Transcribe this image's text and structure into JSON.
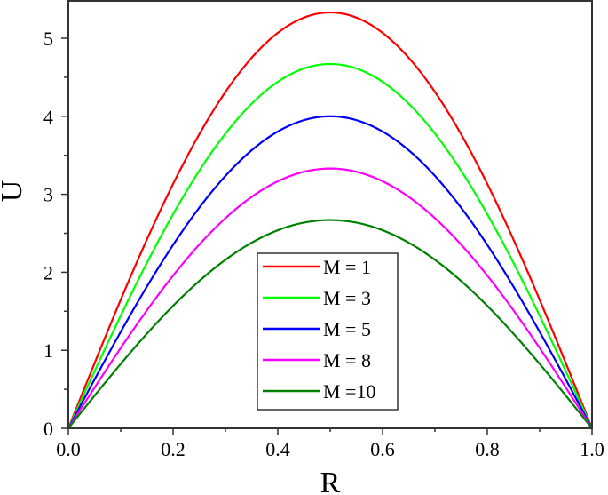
{
  "chart_data": {
    "type": "line",
    "title": "",
    "xlabel": "R",
    "ylabel": "U",
    "xlim": [
      0.0,
      1.0
    ],
    "ylim": [
      0,
      5.5
    ],
    "grid": false,
    "legend_position": "lower center (inside)",
    "x_ticks": [
      "0.0",
      "0.2",
      "0.4",
      "0.6",
      "0.8",
      "1.0"
    ],
    "y_ticks": [
      "0",
      "1",
      "2",
      "3",
      "4",
      "5"
    ],
    "x": [
      0.0,
      0.1,
      0.2,
      0.3,
      0.4,
      0.5,
      0.6,
      0.7,
      0.8,
      0.9,
      1.0
    ],
    "series": [
      {
        "name": "M = 1",
        "color": "#ff0000",
        "peak": 5.33,
        "values": [
          0,
          1.65,
          3.13,
          4.31,
          5.07,
          5.33,
          5.07,
          4.31,
          3.13,
          1.65,
          0
        ]
      },
      {
        "name": "M = 3",
        "color": "#00ff00",
        "peak": 4.67,
        "values": [
          0,
          1.44,
          2.74,
          3.78,
          4.44,
          4.67,
          4.44,
          3.78,
          2.74,
          1.44,
          0
        ]
      },
      {
        "name": "M = 5",
        "color": "#0000ff",
        "peak": 4.0,
        "values": [
          0,
          1.24,
          2.35,
          3.24,
          3.8,
          4.0,
          3.8,
          3.24,
          2.35,
          1.24,
          0
        ]
      },
      {
        "name": "M = 8",
        "color": "#ff00ff",
        "peak": 3.33,
        "values": [
          0,
          1.03,
          1.96,
          2.69,
          3.17,
          3.33,
          3.17,
          2.69,
          1.96,
          1.03,
          0
        ]
      },
      {
        "name": "M =10",
        "color": "#008000",
        "peak": 2.67,
        "values": [
          0,
          0.83,
          1.57,
          2.16,
          2.54,
          2.67,
          2.54,
          2.16,
          1.57,
          0.83,
          0
        ]
      }
    ]
  }
}
